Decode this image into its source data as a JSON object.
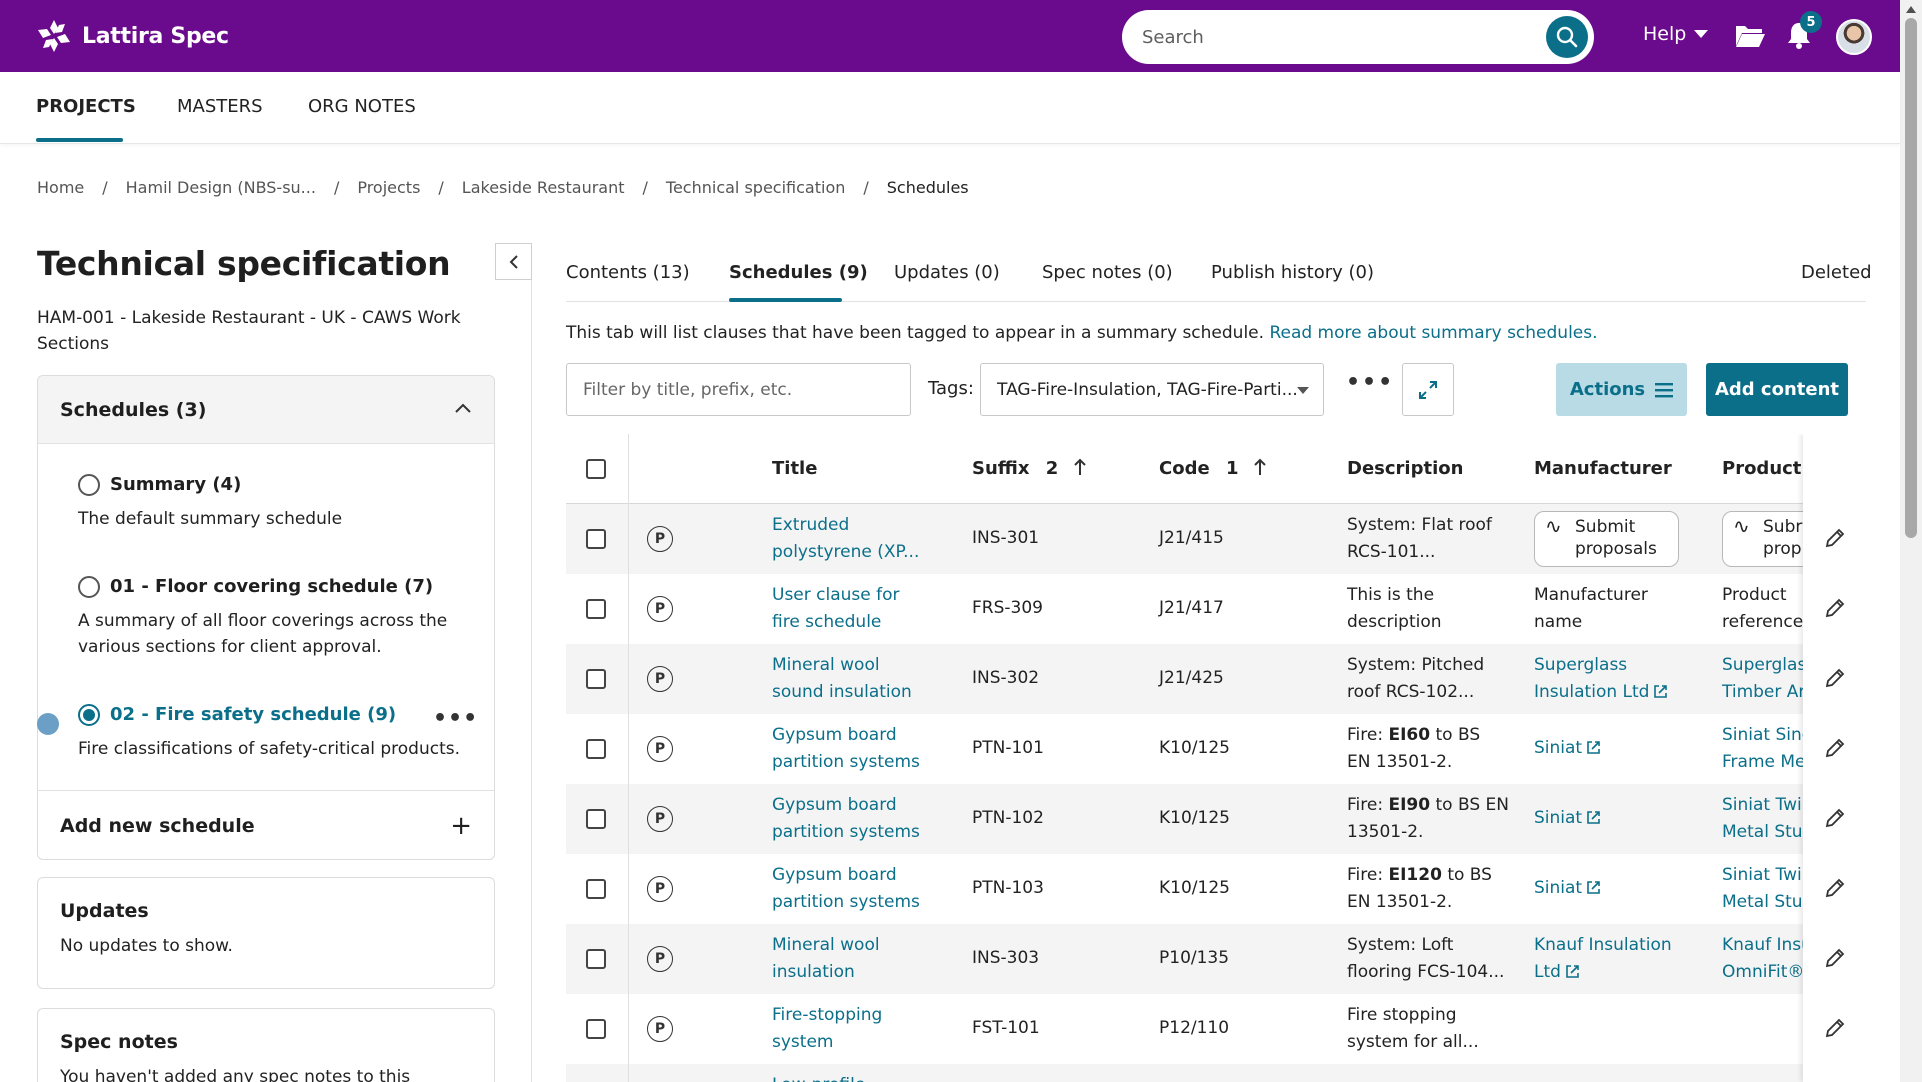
{
  "app": {
    "name": "Lattira Spec"
  },
  "search": {
    "placeholder": "Search"
  },
  "header": {
    "help_label": "Help",
    "notification_count": "5"
  },
  "nav": {
    "items": [
      "PROJECTS",
      "MASTERS",
      "ORG NOTES"
    ],
    "active": "PROJECTS"
  },
  "breadcrumb": [
    "Home",
    "Hamil Design (NBS-su...",
    "Projects",
    "Lakeside Restaurant",
    "Technical specification",
    "Schedules"
  ],
  "left_panel": {
    "title": "Technical specification",
    "subtitle": "HAM-001 - Lakeside Restaurant - UK - CAWS Work Sections",
    "schedules_header": "Schedules (3)",
    "schedules": [
      {
        "name": "Summary (4)",
        "desc": "The default summary schedule",
        "selected": false
      },
      {
        "name": "01 - Floor covering schedule (7)",
        "desc": "A summary of all floor coverings across the various sections for client approval.",
        "selected": false
      },
      {
        "name": "02 - Fire safety schedule (9)",
        "desc": "Fire classifications of safety-critical products.",
        "selected": true
      }
    ],
    "more_label": "•••",
    "add_schedule": "Add new schedule",
    "add_symbol": "+",
    "updates_title": "Updates",
    "updates_text": "No updates to show.",
    "spec_notes_title": "Spec notes",
    "spec_notes_text": "You haven't added any spec notes to this"
  },
  "tabs": [
    {
      "label": "Contents (13)"
    },
    {
      "label": "Schedules (9)",
      "active": true
    },
    {
      "label": "Updates (0)"
    },
    {
      "label": "Spec notes (0)"
    },
    {
      "label": "Publish history (0)"
    }
  ],
  "deleted_label": "Deleted",
  "info": {
    "text": "This tab will list clauses that have been tagged to appear in a summary schedule. ",
    "link": "Read more about summary schedules."
  },
  "filter": {
    "placeholder": "Filter by title, prefix, etc."
  },
  "tags": {
    "label": "Tags:",
    "value": "TAG-Fire-Insulation, TAG-Fire-Parti..."
  },
  "toolbar": {
    "more": "•••",
    "actions_label": "Actions",
    "add_content_label": "Add content"
  },
  "table": {
    "headers": {
      "title": "Title",
      "suffix": "Suffix",
      "suffix_sort": "2",
      "code": "Code",
      "code_sort": "1",
      "description": "Description",
      "manufacturer": "Manufacturer",
      "product": "Product re"
    },
    "rows": [
      {
        "title": [
          "Extruded",
          "polystyrene (XP..."
        ],
        "suffix": "INS-301",
        "code": "J21/415",
        "desc": [
          "System: Flat roof",
          "RCS-101..."
        ],
        "manufacturer_btn": [
          "Submit",
          "proposals"
        ],
        "product_btn": [
          "Subr",
          "prop"
        ]
      },
      {
        "title": [
          "User clause for",
          "fire schedule"
        ],
        "suffix": "FRS-309",
        "code": "J21/417",
        "desc": [
          "This is the",
          "description"
        ],
        "manufacturer": [
          "Manufacturer",
          "name"
        ],
        "product": [
          "Product",
          "reference."
        ]
      },
      {
        "title": [
          "Mineral wool",
          "sound insulation"
        ],
        "suffix": "INS-302",
        "code": "J21/425",
        "desc": [
          "System: Pitched",
          "roof RCS-102..."
        ],
        "manufacturer_link": [
          "Superglass",
          "Insulation Ltd"
        ],
        "product_link": [
          "Superglas",
          "Timber Ar"
        ]
      },
      {
        "title": [
          "Gypsum board",
          "partition systems"
        ],
        "suffix": "PTN-101",
        "code": "K10/125",
        "desc_pre": "Fire: ",
        "desc_bold": "EI60",
        "desc_post": " to BS",
        "desc2": "EN 13501-2.",
        "manufacturer_link": [
          "Siniat"
        ],
        "product_link": [
          "Siniat Sing",
          "Frame Me"
        ]
      },
      {
        "title": [
          "Gypsum board",
          "partition systems"
        ],
        "suffix": "PTN-102",
        "code": "K10/125",
        "desc_pre": "Fire: ",
        "desc_bold": "EI90",
        "desc_post": " to BS EN",
        "desc2": "13501-2.",
        "manufacturer_link": [
          "Siniat"
        ],
        "product_link": [
          "Siniat Twi",
          "Metal Stuc"
        ]
      },
      {
        "title": [
          "Gypsum board",
          "partition systems"
        ],
        "suffix": "PTN-103",
        "code": "K10/125",
        "desc_pre": "Fire: ",
        "desc_bold": "EI120",
        "desc_post": " to BS",
        "desc2": "EN 13501-2.",
        "manufacturer_link": [
          "Siniat"
        ],
        "product_link": [
          "Siniat Twi",
          "Metal Stuc"
        ]
      },
      {
        "title": [
          "Mineral wool",
          "insulation"
        ],
        "suffix": "INS-303",
        "code": "P10/135",
        "desc": [
          "System: Loft",
          "flooring FCS-104..."
        ],
        "manufacturer_link": [
          "Knauf Insulation",
          "Ltd"
        ],
        "product_link": [
          "Knauf Insu",
          "OmniFit® I"
        ]
      },
      {
        "title": [
          "Fire-stopping",
          "system"
        ],
        "suffix": "FST-101",
        "code": "P12/110",
        "desc": [
          "Fire stopping",
          "system for all..."
        ]
      },
      {
        "title": [
          "Low-profile",
          ""
        ],
        "suffix": "",
        "code": "",
        "desc": [
          "",
          ""
        ]
      }
    ],
    "p_symbol": "P"
  },
  "colors": {
    "brand_purple": "#6a0a8c",
    "accent_teal": "#0b6f8a",
    "actions_bg": "#b9dbe6"
  }
}
